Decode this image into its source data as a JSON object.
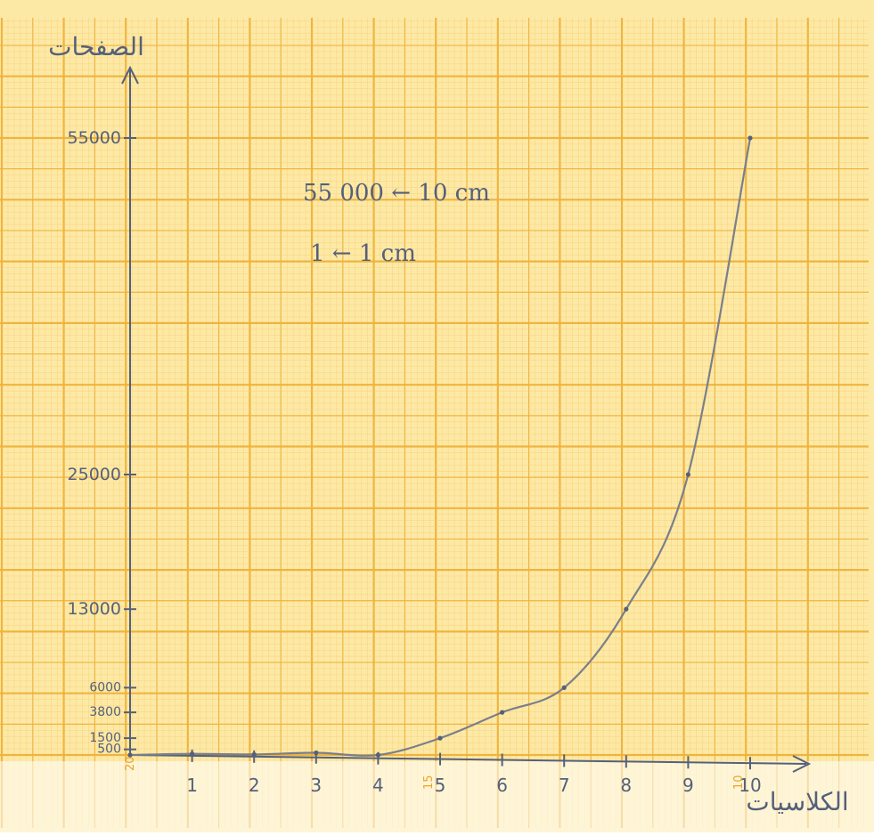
{
  "chart_data": {
    "type": "line",
    "title": "",
    "ylabel": "الصفحات",
    "xlabel": "الكلاسيات",
    "x": [
      0,
      1,
      2,
      3,
      4,
      5,
      6,
      7,
      8,
      9,
      10
    ],
    "x_tick_labels": [
      "1",
      "2",
      "3",
      "4",
      "5",
      "6",
      "7",
      "8",
      "9",
      "10"
    ],
    "y_tick_labels": [
      "500",
      "1500",
      "3800",
      "6000",
      "13000",
      "25000",
      "55000"
    ],
    "y_tick_values": [
      500,
      1500,
      3800,
      6000,
      13000,
      25000,
      55000
    ],
    "series": [
      {
        "name": "",
        "points": [
          {
            "x": 0,
            "y": 0
          },
          {
            "x": 1,
            "y": 100
          },
          {
            "x": 2,
            "y": 50
          },
          {
            "x": 3,
            "y": 200
          },
          {
            "x": 4,
            "y": 0
          },
          {
            "x": 5,
            "y": 1500
          },
          {
            "x": 6,
            "y": 3800
          },
          {
            "x": 7,
            "y": 6000
          },
          {
            "x": 8,
            "y": 13000
          },
          {
            "x": 9,
            "y": 25000
          },
          {
            "x": 10,
            "y": 55000
          }
        ]
      }
    ],
    "xlim": [
      0,
      10.9
    ],
    "ylim": [
      0,
      56000
    ],
    "grid": true,
    "annotations": [
      {
        "text": "55 000 ← 10 cm"
      },
      {
        "text": "1 ← 1 cm"
      }
    ],
    "paper_margin_marks": [
      "20",
      "15",
      "10"
    ],
    "colors": {
      "paper": "#fde9a6",
      "grid_minor": "#f6c96a",
      "grid_major": "#efb23a",
      "ink": "#55607a",
      "curve": "#7a7f8a"
    }
  }
}
